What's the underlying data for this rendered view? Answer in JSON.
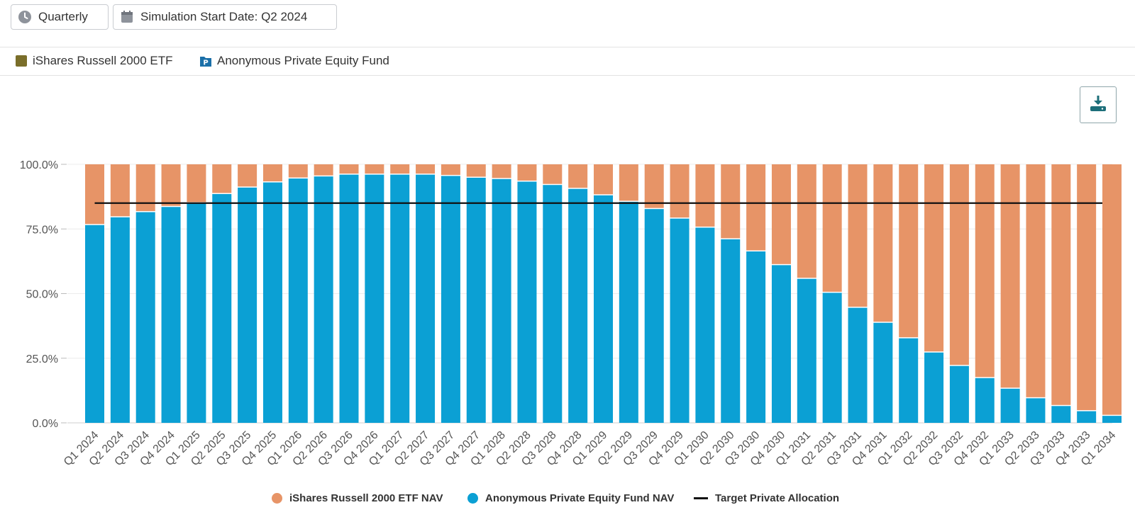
{
  "toolbar": {
    "frequency_label": "Quarterly",
    "start_date_label": "Simulation Start Date: Q2 2024"
  },
  "funds": {
    "public_fund": "iShares Russell 2000 ETF",
    "private_fund": "Anonymous Private Equity Fund",
    "public_color": "#7a6e2a",
    "private_color": "#1a6fa8"
  },
  "chart_data": {
    "type": "bar",
    "stacked": true,
    "categories": [
      "Q1 2024",
      "Q2 2024",
      "Q3 2024",
      "Q4 2024",
      "Q1 2025",
      "Q2 2025",
      "Q3 2025",
      "Q4 2025",
      "Q1 2026",
      "Q2 2026",
      "Q3 2026",
      "Q4 2026",
      "Q1 2027",
      "Q2 2027",
      "Q3 2027",
      "Q4 2027",
      "Q1 2028",
      "Q2 2028",
      "Q3 2028",
      "Q4 2028",
      "Q1 2029",
      "Q2 2029",
      "Q3 2029",
      "Q4 2029",
      "Q1 2030",
      "Q2 2030",
      "Q3 2030",
      "Q4 2030",
      "Q1 2031",
      "Q2 2031",
      "Q3 2031",
      "Q4 2031",
      "Q1 2032",
      "Q2 2032",
      "Q3 2032",
      "Q4 2032",
      "Q1 2033",
      "Q2 2033",
      "Q3 2033",
      "Q4 2033",
      "Q1 2034"
    ],
    "series": [
      {
        "name": "Anonymous Private Equity Fund NAV",
        "color": "#0ba0d4",
        "values": [
          76.5,
          79.5,
          81.5,
          83.5,
          85.0,
          88.5,
          91.0,
          93.0,
          94.5,
          95.3,
          96.0,
          96.0,
          96.0,
          96.0,
          95.5,
          94.8,
          94.3,
          93.3,
          92.0,
          90.5,
          88.0,
          85.5,
          82.7,
          79.0,
          75.5,
          71.0,
          66.3,
          61.0,
          55.7,
          50.3,
          44.5,
          38.7,
          32.7,
          27.2,
          22.0,
          17.3,
          13.2,
          9.5,
          6.5,
          4.5,
          2.7
        ]
      },
      {
        "name": "iShares Russell 2000 ETF NAV",
        "color": "#e79467",
        "values": [
          23.5,
          20.5,
          18.5,
          16.5,
          15.0,
          11.5,
          9.0,
          7.0,
          5.5,
          4.7,
          4.0,
          4.0,
          4.0,
          4.0,
          4.5,
          5.2,
          5.7,
          6.7,
          8.0,
          9.5,
          12.0,
          14.5,
          17.3,
          21.0,
          24.5,
          29.0,
          33.7,
          39.0,
          44.3,
          49.7,
          55.5,
          61.3,
          67.3,
          72.8,
          78.0,
          82.7,
          86.8,
          90.5,
          93.5,
          95.5,
          97.3
        ]
      }
    ],
    "target_line": {
      "name": "Target Private Allocation",
      "value": 85.0,
      "color": "#111111"
    },
    "y_ticks": [
      "0.0%",
      "25.0%",
      "50.0%",
      "75.0%",
      "100.0%"
    ],
    "y_tick_values": [
      0,
      25,
      50,
      75,
      100
    ],
    "ylim": [
      0,
      100
    ],
    "legend": [
      {
        "label": "iShares Russell 2000 ETF NAV",
        "kind": "dot",
        "color": "#e79467"
      },
      {
        "label": "Anonymous Private Equity Fund NAV",
        "kind": "dot",
        "color": "#0ba0d4"
      },
      {
        "label": "Target Private Allocation",
        "kind": "line",
        "color": "#111111"
      }
    ]
  }
}
